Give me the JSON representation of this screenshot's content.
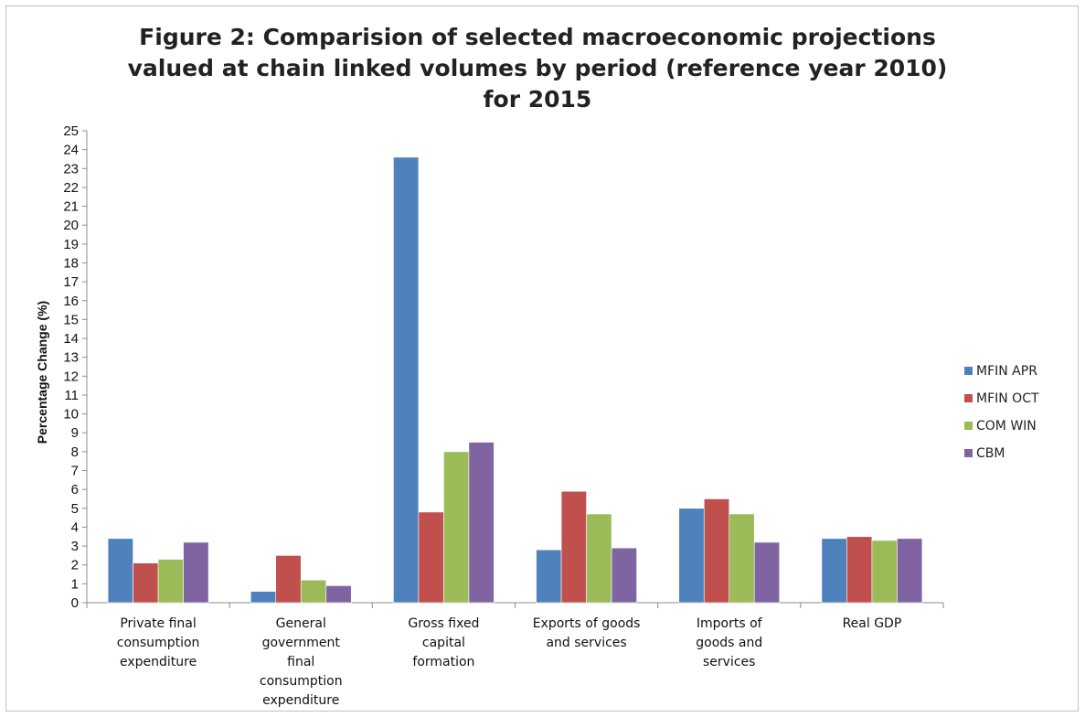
{
  "chart_data": {
    "type": "bar",
    "title_lines": [
      "Figure 2: Comparision of selected macroeconomic projections",
      "valued at chain linked volumes by period (reference year 2010)",
      "for 2015"
    ],
    "xlabel": "",
    "ylabel": "Percentage Change (%)",
    "ylim": [
      0,
      25
    ],
    "ytick_step": 1,
    "grid": false,
    "legend_position": "right",
    "categories": [
      [
        "Private final",
        "consumption",
        "expenditure"
      ],
      [
        "General",
        "government",
        "final",
        "consumption",
        "expenditure"
      ],
      [
        "Gross fixed",
        "capital",
        "formation"
      ],
      [
        "Exports of goods",
        "and services"
      ],
      [
        "Imports of",
        "goods and",
        "services"
      ],
      [
        "Real GDP"
      ]
    ],
    "series": [
      {
        "name": "MFIN APR",
        "color": "#4f81bd",
        "values": [
          3.4,
          0.6,
          23.6,
          2.8,
          5.0,
          3.4
        ]
      },
      {
        "name": "MFIN OCT",
        "color": "#c0504d",
        "values": [
          2.1,
          2.5,
          4.8,
          5.9,
          5.5,
          3.5
        ]
      },
      {
        "name": "COM WIN",
        "color": "#9bbb59",
        "values": [
          2.3,
          1.2,
          8.0,
          4.7,
          4.7,
          3.3
        ]
      },
      {
        "name": "CBM",
        "color": "#8064a2",
        "values": [
          3.2,
          0.9,
          8.5,
          2.9,
          3.2,
          3.4
        ]
      }
    ]
  }
}
